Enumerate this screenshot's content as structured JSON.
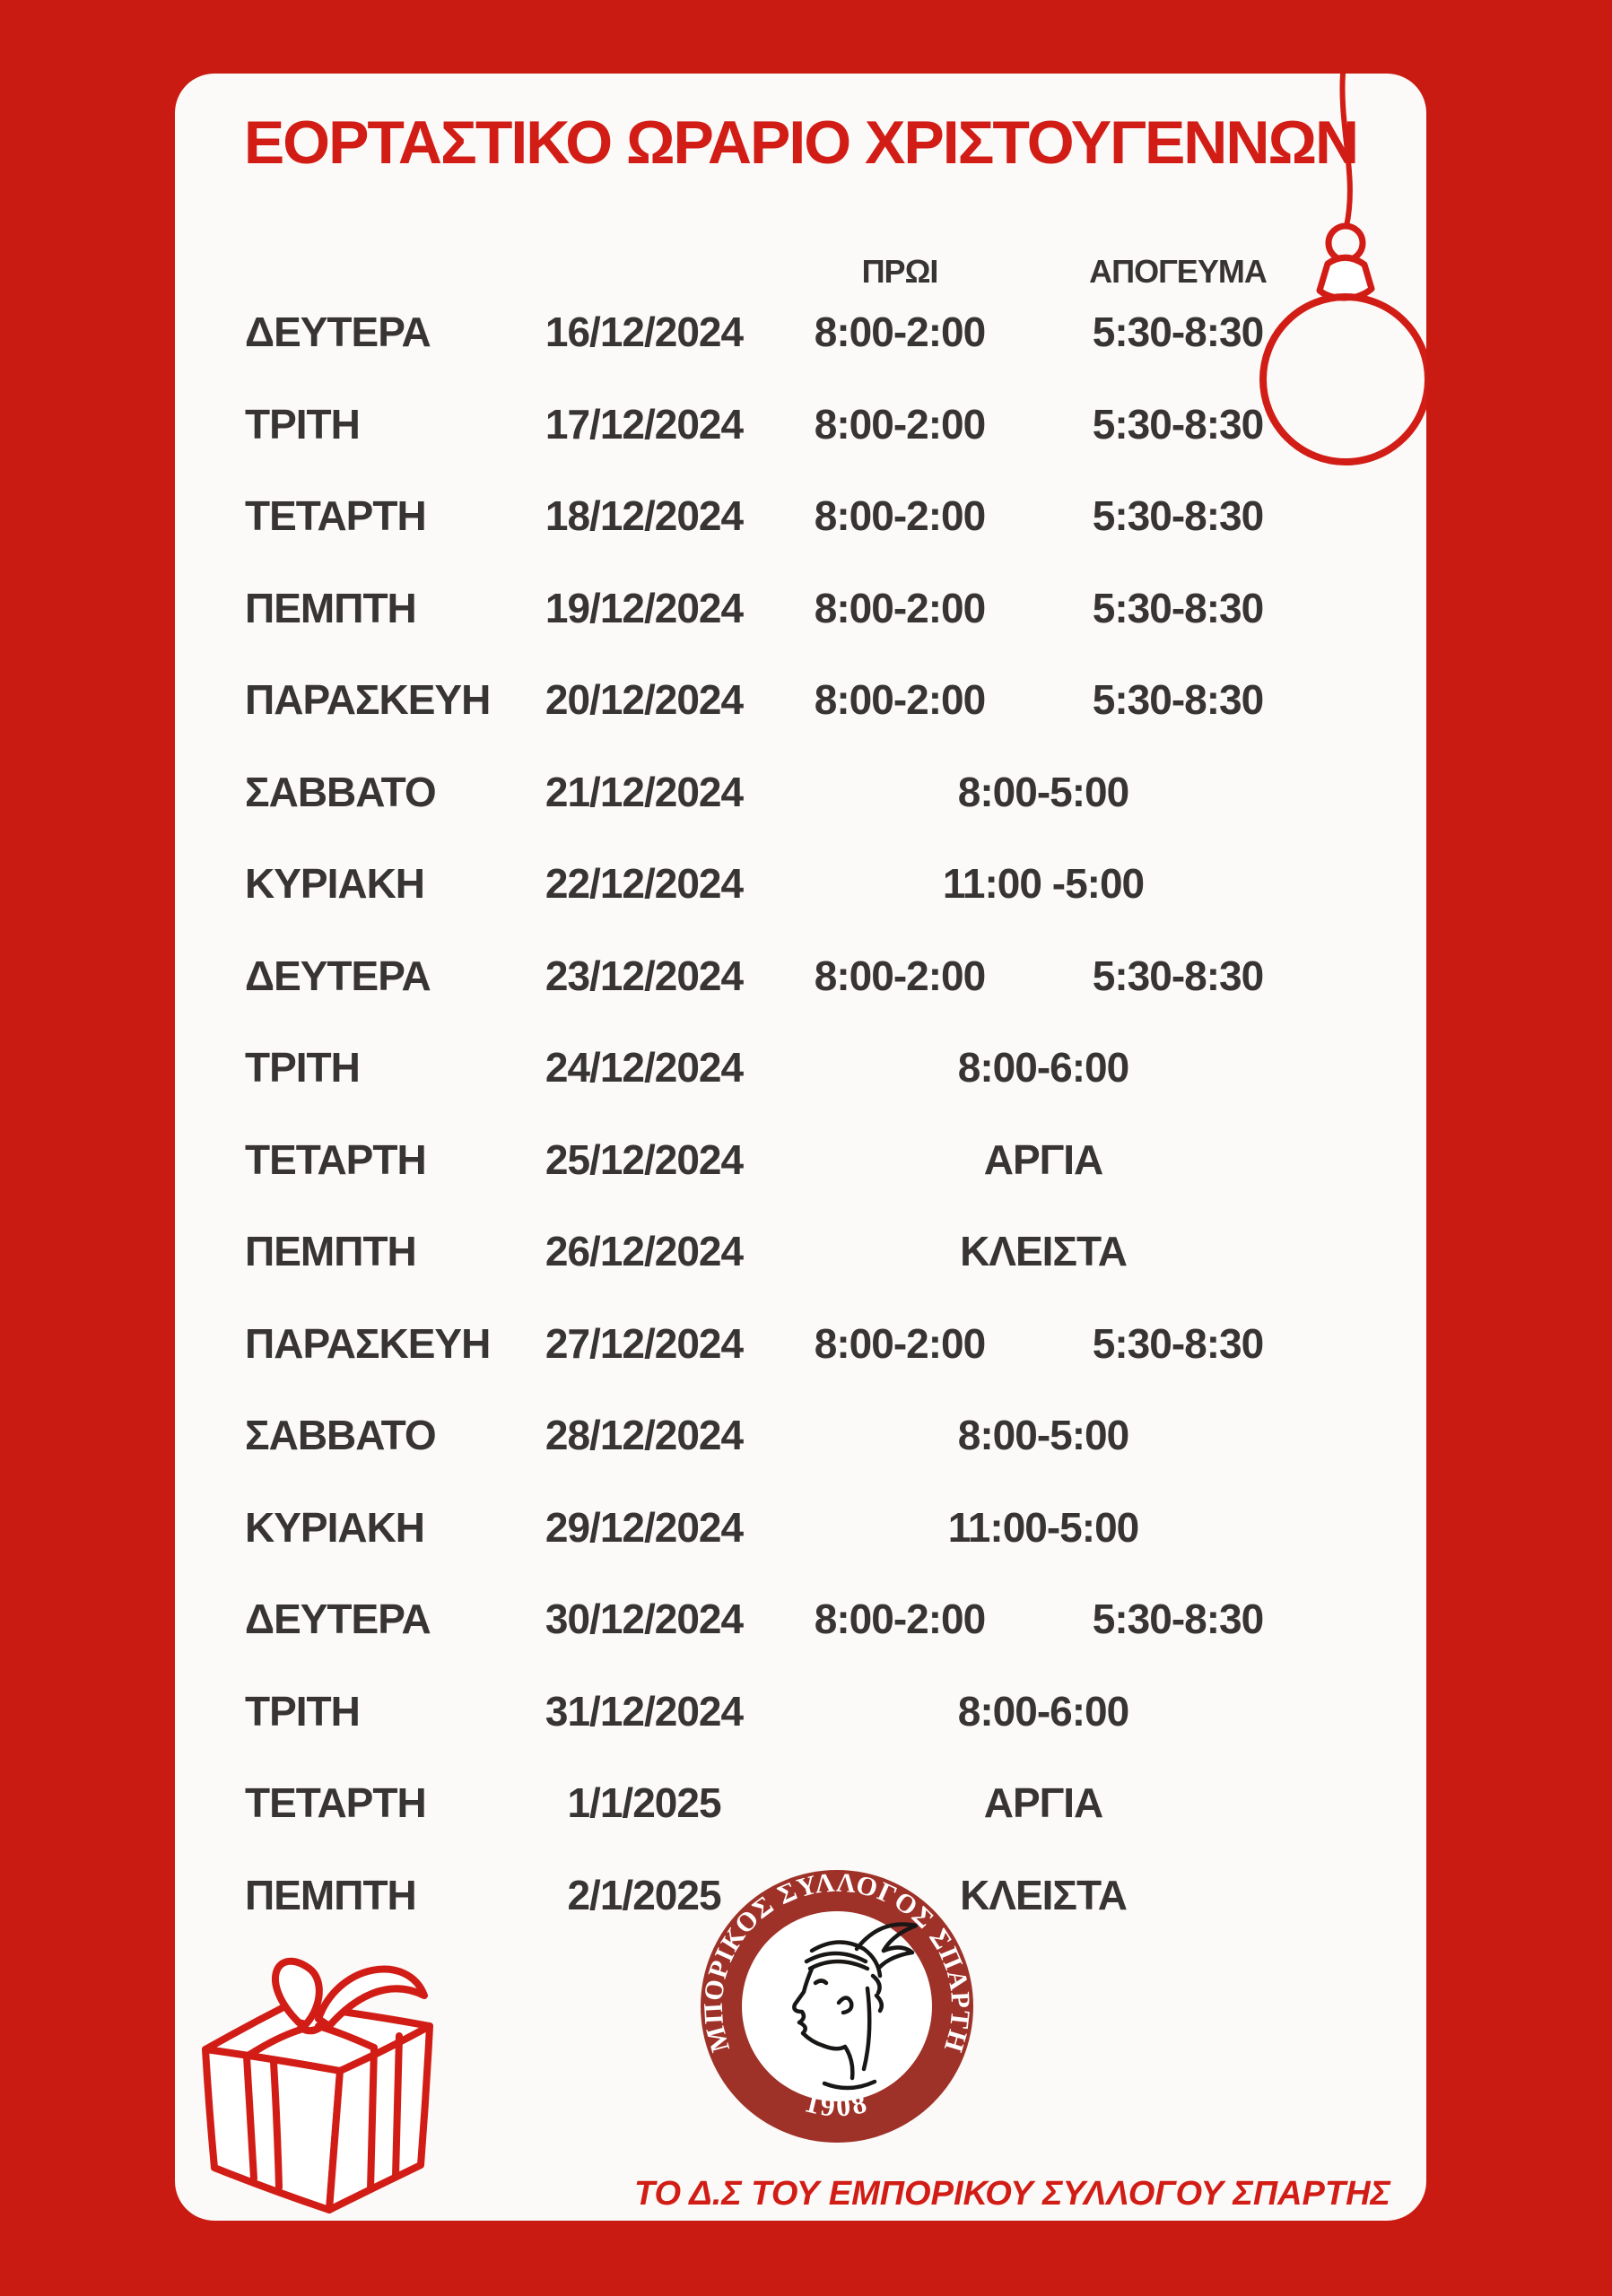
{
  "poster": {
    "title": "ΕΟΡΤΑΣΤΙΚΟ ΩΡΑΡΙΟ ΧΡΙΣΤΟΥΓΕΝΝΩΝ",
    "columns": {
      "morning": "ΠΡΩΙ",
      "afternoon": "ΑΠΟΓΕΥΜΑ"
    },
    "rows": [
      {
        "day": "ΔΕΥΤΕΡΑ",
        "date": "16/12/2024",
        "morning": "8:00-2:00",
        "afternoon": "5:30-8:30"
      },
      {
        "day": "ΤΡΙΤΗ",
        "date": "17/12/2024",
        "morning": "8:00-2:00",
        "afternoon": "5:30-8:30"
      },
      {
        "day": "ΤΕΤΑΡΤΗ",
        "date": "18/12/2024",
        "morning": "8:00-2:00",
        "afternoon": "5:30-8:30"
      },
      {
        "day": "ΠΕΜΠΤΗ",
        "date": "19/12/2024",
        "morning": "8:00-2:00",
        "afternoon": "5:30-8:30"
      },
      {
        "day": "ΠΑΡΑΣΚΕΥΗ",
        "date": "20/12/2024",
        "morning": "8:00-2:00",
        "afternoon": "5:30-8:30"
      },
      {
        "day": "ΣΑΒΒΑΤΟ",
        "date": "21/12/2024",
        "allday": "8:00-5:00"
      },
      {
        "day": "ΚΥΡΙΑΚΗ",
        "date": "22/12/2024",
        "allday": "11:00 -5:00"
      },
      {
        "day": "ΔΕΥΤΕΡΑ",
        "date": "23/12/2024",
        "morning": "8:00-2:00",
        "afternoon": "5:30-8:30"
      },
      {
        "day": "ΤΡΙΤΗ",
        "date": "24/12/2024",
        "allday": "8:00-6:00"
      },
      {
        "day": "ΤΕΤΑΡΤΗ",
        "date": "25/12/2024",
        "allday": "ΑΡΓΙΑ"
      },
      {
        "day": "ΠΕΜΠΤΗ",
        "date": "26/12/2024",
        "allday": "ΚΛΕΙΣΤΑ"
      },
      {
        "day": "ΠΑΡΑΣΚΕΥΗ",
        "date": "27/12/2024",
        "morning": "8:00-2:00",
        "afternoon": "5:30-8:30"
      },
      {
        "day": "ΣΑΒΒΑΤΟ",
        "date": "28/12/2024",
        "allday": "8:00-5:00"
      },
      {
        "day": "ΚΥΡΙΑΚΗ",
        "date": "29/12/2024",
        "allday": "11:00-5:00"
      },
      {
        "day": "ΔΕΥΤΕΡΑ",
        "date": "30/12/2024",
        "morning": "8:00-2:00",
        "afternoon": "5:30-8:30"
      },
      {
        "day": "ΤΡΙΤΗ",
        "date": "31/12/2024",
        "allday": "8:00-6:00"
      },
      {
        "day": "ΤΕΤΑΡΤΗ",
        "date": "1/1/2025",
        "allday": "ΑΡΓΙΑ"
      },
      {
        "day": "ΠΕΜΠΤΗ",
        "date": "2/1/2025",
        "allday": "ΚΛΕΙΣΤΑ"
      }
    ],
    "seal": {
      "around": "ΕΜΠΟΡΙΚΟΣ ΣΥΛΛΟΓΟΣ ΣΠΑΡΤΗΣ",
      "year": "1908"
    },
    "footer": "ΤΟ Δ.Σ ΤΟΥ ΕΜΠΟΡΙΚΟΥ ΣΥΛΛΟΓΟΥ ΣΠΑΡΤΗΣ",
    "colors": {
      "accent_red": "#d11d15",
      "border_red": "#c91b12",
      "seal_red": "#9e3128",
      "text_dark": "#383434",
      "card_white": "#fbfaf8"
    }
  }
}
